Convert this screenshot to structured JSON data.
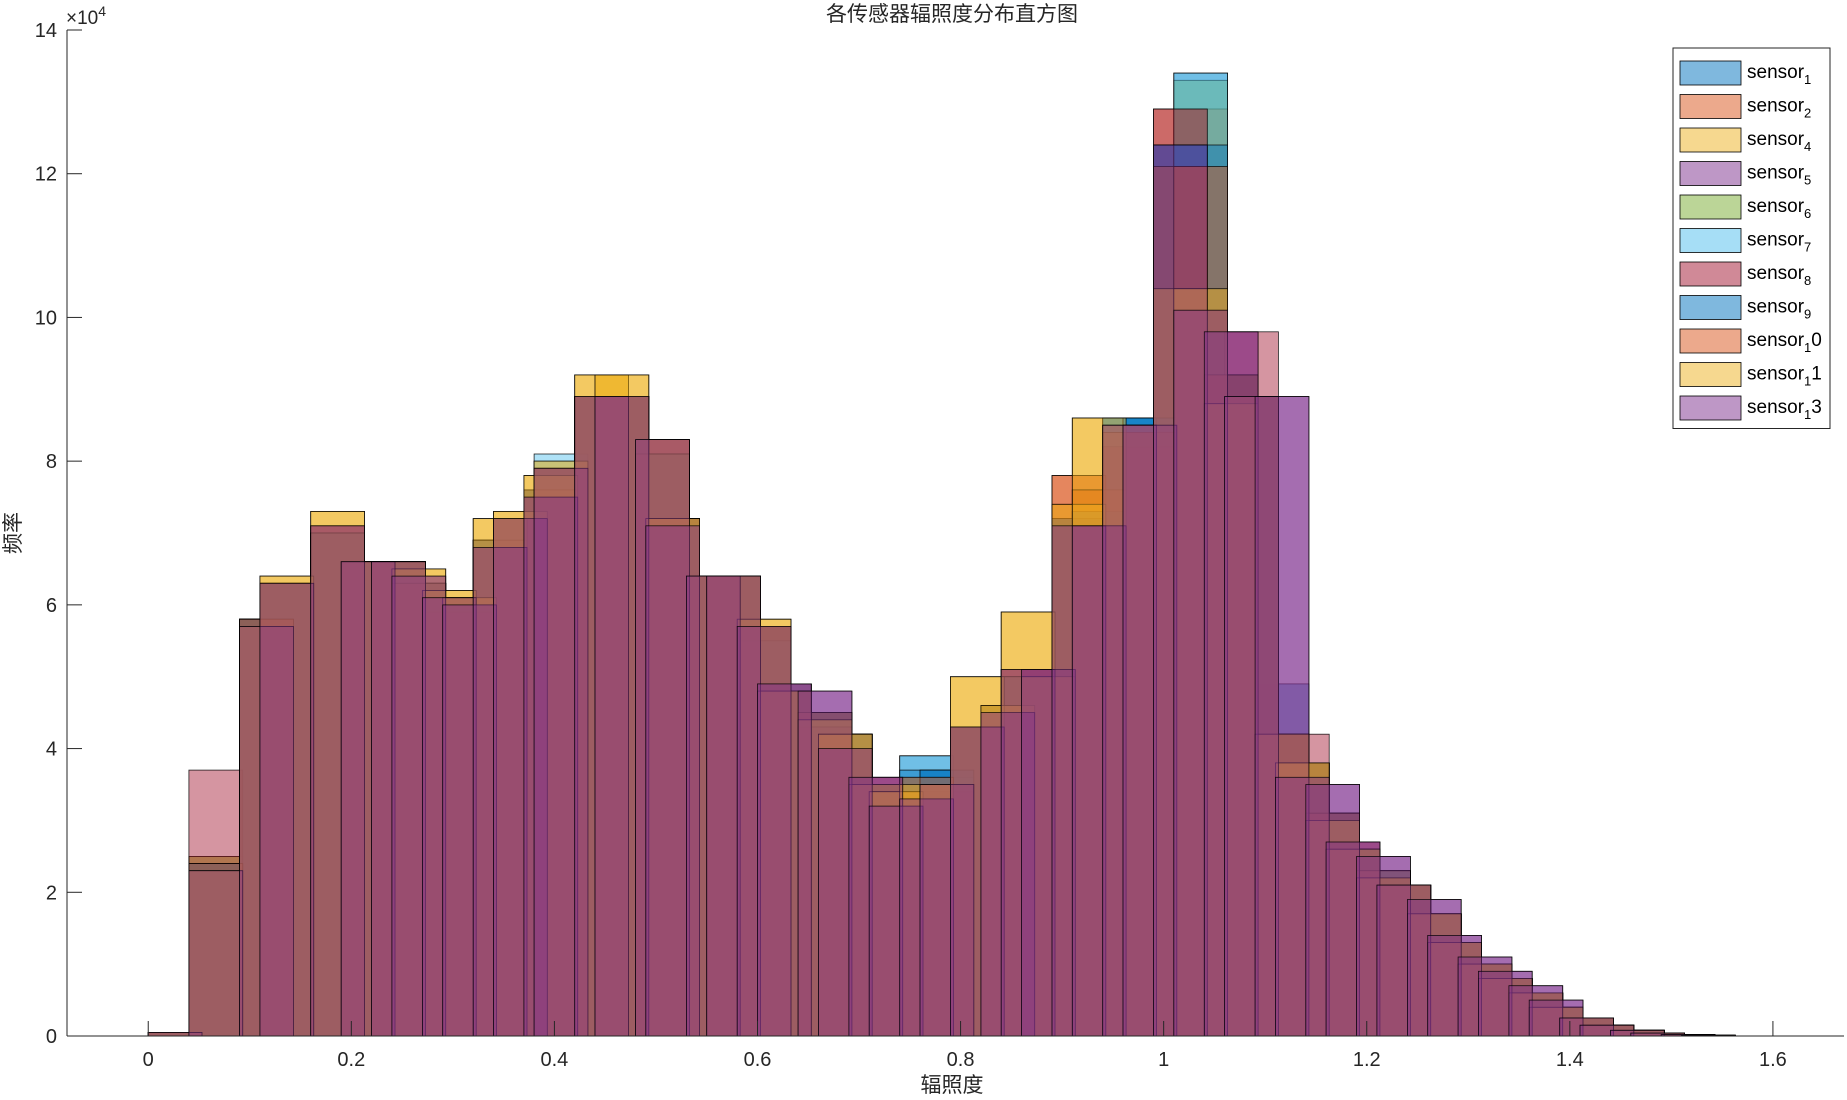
{
  "chart_data": {
    "type": "bar",
    "title": "各传感器辐照度分布直方图",
    "xlabel": "辐照度",
    "ylabel": "频率",
    "xlim": [
      -0.08,
      1.67
    ],
    "ylim": [
      0,
      14
    ],
    "y_exponent_label": "×10",
    "y_exponent_power": "4",
    "x_ticks": [
      0,
      0.2,
      0.4,
      0.6,
      0.8,
      1,
      1.2,
      1.4,
      1.6
    ],
    "x_tick_labels": [
      "0",
      "0.2",
      "0.4",
      "0.6",
      "0.8",
      "1",
      "1.2",
      "1.4",
      "1.6"
    ],
    "y_ticks": [
      0,
      2,
      4,
      6,
      8,
      10,
      12,
      14
    ],
    "y_tick_labels": [
      "0",
      "2",
      "4",
      "6",
      "8",
      "10",
      "12",
      "14"
    ],
    "bin_width": 0.053,
    "bin_starts": [
      0,
      0.04,
      0.09,
      0.11,
      0.16,
      0.19,
      0.22,
      0.24,
      0.27,
      0.29,
      0.32,
      0.34,
      0.37,
      0.38,
      0.42,
      0.44,
      0.48,
      0.49,
      0.53,
      0.55,
      0.58,
      0.6,
      0.64,
      0.66,
      0.69,
      0.71,
      0.74,
      0.76,
      0.79,
      0.82,
      0.84,
      0.86,
      0.89,
      0.91,
      0.94,
      0.96,
      0.99,
      1.01,
      1.04,
      1.06,
      1.09,
      1.11,
      1.14,
      1.16,
      1.19,
      1.21,
      1.24,
      1.26,
      1.29,
      1.31,
      1.34,
      1.36,
      1.39,
      1.41,
      1.44,
      1.46,
      1.49,
      1.51
    ],
    "legend_position": "top-right",
    "grid": false,
    "series": [
      {
        "name_base": "sensor",
        "name_sub": "1",
        "name_suffix": "",
        "color": "#0072BD",
        "values": [
          0.05,
          2.4,
          5.8,
          6.3,
          7.0,
          6.6,
          6.6,
          6.3,
          6.1,
          6.1,
          6.9,
          7.2,
          7.6,
          7.9,
          8.9,
          8.9,
          8.1,
          7.2,
          6.4,
          6.4,
          5.7,
          4.8,
          4.5,
          4.2,
          3.5,
          3.4,
          3.9,
          3.7,
          4.3,
          4.6,
          5.0,
          5.0,
          7.2,
          7.3,
          8.6,
          8.6,
          12.4,
          13.4,
          9.2,
          8.9,
          4.9,
          3.8,
          3.1,
          2.6,
          2.3,
          2.1,
          1.7,
          1.3,
          1.0,
          0.8,
          0.6,
          0.4,
          0.25,
          0.15,
          0.08,
          0.04,
          0.02,
          0.01
        ]
      },
      {
        "name_base": "sensor",
        "name_sub": "2",
        "name_suffix": "",
        "color": "#D95319",
        "values": [
          0.05,
          2.4,
          5.8,
          6.3,
          7.0,
          6.6,
          6.6,
          6.3,
          6.1,
          6.1,
          6.9,
          7.2,
          7.6,
          7.9,
          8.9,
          8.9,
          8.1,
          7.2,
          6.4,
          6.4,
          5.7,
          4.8,
          4.5,
          4.2,
          3.5,
          3.4,
          3.6,
          3.5,
          4.3,
          4.6,
          5.0,
          5.0,
          7.8,
          7.6,
          8.4,
          8.4,
          12.9,
          12.9,
          9.2,
          8.9,
          4.2,
          3.8,
          3.1,
          2.6,
          2.3,
          2.1,
          1.7,
          1.3,
          1.0,
          0.8,
          0.6,
          0.4,
          0.25,
          0.15,
          0.08,
          0.04,
          0.02,
          0.01
        ]
      },
      {
        "name_base": "sensor",
        "name_sub": "4",
        "name_suffix": "",
        "color": "#EDB120",
        "values": [
          0.05,
          2.5,
          5.8,
          6.4,
          7.3,
          6.6,
          6.6,
          6.5,
          6.2,
          6.1,
          7.2,
          7.3,
          7.8,
          8.0,
          9.2,
          9.2,
          8.3,
          7.2,
          6.4,
          6.4,
          5.8,
          4.8,
          4.4,
          4.2,
          3.5,
          3.4,
          3.5,
          3.5,
          5.0,
          4.6,
          5.9,
          5.0,
          7.4,
          8.6,
          8.5,
          8.5,
          10.4,
          10.4,
          8.8,
          8.9,
          4.2,
          3.8,
          3.0,
          2.6,
          2.2,
          2.1,
          1.7,
          1.3,
          1.0,
          0.8,
          0.6,
          0.4,
          0.25,
          0.15,
          0.08,
          0.04,
          0.02,
          0.01
        ]
      },
      {
        "name_base": "sensor",
        "name_sub": "5",
        "name_suffix": "",
        "color": "#7E2F8E",
        "values": [
          0.05,
          2.3,
          5.7,
          6.3,
          7.1,
          6.6,
          6.6,
          6.4,
          6.1,
          6.0,
          6.8,
          7.2,
          7.5,
          7.9,
          8.9,
          8.9,
          8.3,
          7.1,
          6.4,
          6.4,
          5.7,
          4.9,
          4.8,
          4.0,
          3.6,
          3.2,
          3.3,
          3.5,
          4.3,
          4.5,
          5.1,
          5.1,
          7.1,
          7.1,
          8.5,
          8.5,
          12.4,
          10.1,
          9.8,
          8.9,
          8.9,
          3.6,
          3.5,
          2.7,
          2.5,
          2.1,
          1.9,
          1.4,
          1.1,
          0.9,
          0.7,
          0.5,
          0.25,
          0.15,
          0.08,
          0.04,
          0.02,
          0.01
        ]
      },
      {
        "name_base": "sensor",
        "name_sub": "6",
        "name_suffix": "",
        "color": "#77AC30",
        "values": [
          0.05,
          2.5,
          5.8,
          6.3,
          7.0,
          6.6,
          6.6,
          6.3,
          6.1,
          6.1,
          6.9,
          7.2,
          7.6,
          7.9,
          8.9,
          8.9,
          8.1,
          7.2,
          6.4,
          6.4,
          5.7,
          4.8,
          4.5,
          4.2,
          3.5,
          3.4,
          3.6,
          3.5,
          4.3,
          4.6,
          5.0,
          5.0,
          7.2,
          7.3,
          8.4,
          8.4,
          12.1,
          13.3,
          9.2,
          8.9,
          4.2,
          3.8,
          3.1,
          2.6,
          2.3,
          2.1,
          1.7,
          1.3,
          1.0,
          0.8,
          0.6,
          0.4,
          0.25,
          0.15,
          0.08,
          0.04,
          0.02,
          0.01
        ]
      },
      {
        "name_base": "sensor",
        "name_sub": "7",
        "name_suffix": "",
        "color": "#4DBEEE",
        "values": [
          0.05,
          2.4,
          5.8,
          6.3,
          7.0,
          6.6,
          6.6,
          6.3,
          6.1,
          6.1,
          6.9,
          7.2,
          7.6,
          8.1,
          8.9,
          8.9,
          8.1,
          7.2,
          6.4,
          6.4,
          5.5,
          4.9,
          4.3,
          4.2,
          3.5,
          3.4,
          3.9,
          3.6,
          4.3,
          4.6,
          5.0,
          5.0,
          7.2,
          7.3,
          8.6,
          8.6,
          12.4,
          13.4,
          9.2,
          8.9,
          4.2,
          3.8,
          3.1,
          2.6,
          2.3,
          2.1,
          1.7,
          1.3,
          1.0,
          0.8,
          0.6,
          0.4,
          0.25,
          0.15,
          0.08,
          0.04,
          0.02,
          0.01
        ]
      },
      {
        "name_base": "sensor",
        "name_sub": "8",
        "name_suffix": "",
        "color": "#A2142F",
        "values": [
          0.05,
          3.7,
          5.8,
          6.3,
          7.1,
          6.6,
          6.6,
          6.3,
          5.9,
          5.9,
          6.8,
          7.2,
          7.5,
          7.9,
          8.9,
          8.9,
          8.3,
          7.2,
          6.4,
          6.4,
          5.7,
          4.9,
          4.3,
          4.0,
          3.6,
          3.2,
          3.3,
          3.4,
          4.3,
          4.5,
          5.1,
          5.1,
          7.2,
          7.1,
          8.2,
          8.2,
          12.9,
          10.1,
          9.2,
          9.8,
          4.2,
          4.2,
          3.1,
          2.7,
          2.2,
          2.1,
          1.7,
          1.3,
          1.0,
          0.8,
          0.6,
          0.4,
          0.25,
          0.15,
          0.08,
          0.04,
          0.02,
          0.01
        ]
      },
      {
        "name_base": "sensor",
        "name_sub": "9",
        "name_suffix": "",
        "color": "#0072BD",
        "values": [
          0.05,
          2.4,
          5.8,
          6.3,
          7.0,
          6.6,
          6.6,
          6.3,
          6.1,
          6.1,
          6.9,
          7.2,
          7.6,
          7.9,
          8.9,
          8.9,
          8.1,
          7.2,
          6.4,
          6.4,
          5.7,
          4.8,
          4.5,
          4.2,
          3.5,
          3.4,
          3.7,
          3.7,
          4.3,
          4.6,
          5.0,
          5.0,
          7.2,
          7.3,
          8.6,
          8.6,
          12.4,
          12.4,
          9.2,
          8.9,
          4.2,
          3.8,
          3.1,
          2.6,
          2.3,
          2.1,
          1.7,
          1.3,
          1.0,
          0.8,
          0.6,
          0.4,
          0.25,
          0.15,
          0.08,
          0.04,
          0.02,
          0.01
        ]
      },
      {
        "name_base": "sensor",
        "name_sub": "1",
        "name_suffix": "0",
        "color": "#D95319",
        "values": [
          0.05,
          2.4,
          5.8,
          6.3,
          7.0,
          6.6,
          6.6,
          6.3,
          6.1,
          6.1,
          6.9,
          7.2,
          7.6,
          7.9,
          8.9,
          8.9,
          8.1,
          7.2,
          6.4,
          6.4,
          5.7,
          4.8,
          4.5,
          4.2,
          3.5,
          3.4,
          3.6,
          3.5,
          4.3,
          4.6,
          5.0,
          5.0,
          7.8,
          7.6,
          8.4,
          8.4,
          12.1,
          12.1,
          9.2,
          8.9,
          4.2,
          3.8,
          3.1,
          2.6,
          2.3,
          2.1,
          1.7,
          1.3,
          1.0,
          0.8,
          0.6,
          0.4,
          0.25,
          0.15,
          0.08,
          0.04,
          0.02,
          0.01
        ]
      },
      {
        "name_base": "sensor",
        "name_sub": "1",
        "name_suffix": "1",
        "color": "#EDB120",
        "values": [
          0.05,
          2.3,
          5.7,
          6.4,
          7.3,
          6.6,
          6.6,
          6.5,
          6.2,
          6.1,
          7.2,
          7.3,
          7.8,
          8.0,
          9.2,
          9.2,
          8.3,
          7.2,
          6.4,
          6.4,
          5.8,
          4.8,
          4.4,
          4.2,
          3.5,
          3.4,
          3.5,
          3.5,
          5.0,
          4.6,
          5.9,
          5.0,
          7.4,
          8.6,
          8.5,
          8.5,
          10.4,
          10.4,
          8.8,
          8.9,
          4.2,
          3.8,
          3.0,
          2.6,
          2.2,
          2.1,
          1.7,
          1.3,
          1.0,
          0.8,
          0.6,
          0.4,
          0.25,
          0.15,
          0.08,
          0.04,
          0.02,
          0.01
        ]
      },
      {
        "name_base": "sensor",
        "name_sub": "1",
        "name_suffix": "3",
        "color": "#7E2F8E",
        "values": [
          0.05,
          2.3,
          5.7,
          6.3,
          7.1,
          6.6,
          6.6,
          6.4,
          6.1,
          6.0,
          6.8,
          7.2,
          7.5,
          7.9,
          8.9,
          8.9,
          8.3,
          7.1,
          6.4,
          6.4,
          5.7,
          4.9,
          4.8,
          4.0,
          3.6,
          3.2,
          3.3,
          3.5,
          4.3,
          4.5,
          5.1,
          5.1,
          7.1,
          7.1,
          8.5,
          8.5,
          12.4,
          10.1,
          9.8,
          8.9,
          8.9,
          3.6,
          3.5,
          2.7,
          2.5,
          2.1,
          1.9,
          1.4,
          1.1,
          0.9,
          0.7,
          0.5,
          0.25,
          0.15,
          0.08,
          0.04,
          0.02,
          0.01
        ]
      }
    ]
  }
}
